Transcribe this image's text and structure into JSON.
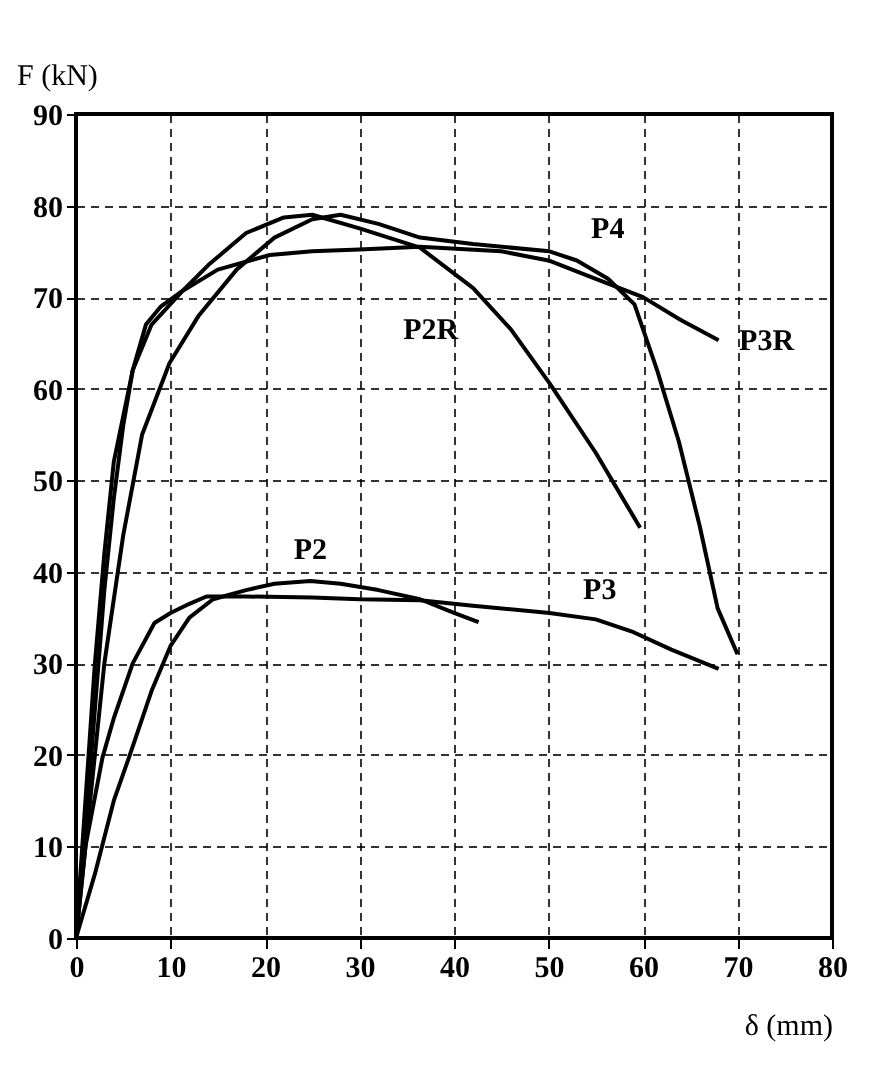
{
  "chart_data": {
    "type": "line",
    "xlabel": "δ (mm)",
    "ylabel": "F (kN)",
    "xlim": [
      0,
      80
    ],
    "xticks": [
      0,
      10,
      20,
      30,
      40,
      50,
      60,
      70,
      80
    ],
    "ylim": [
      0,
      90
    ],
    "yticks": [
      0,
      10,
      20,
      30,
      40,
      50,
      60,
      70,
      80,
      90
    ],
    "grid": true,
    "marker": "none",
    "line_style": "solid",
    "series": [
      {
        "color": "#000000",
        "x": [
          0,
          1,
          2,
          3,
          4,
          5,
          6,
          7.4,
          9,
          11.3,
          14,
          18,
          22,
          25,
          30,
          36.4,
          42,
          46,
          50.1,
          55,
          59.7
        ],
        "values": [
          0,
          12,
          25,
          38,
          48,
          56,
          62,
          67,
          69,
          70.7,
          73.5,
          77,
          78.7,
          79,
          77.5,
          75.4,
          71,
          66.5,
          60.6,
          53,
          44.8
        ]
      },
      {
        "color": "#000000",
        "x": [
          0,
          1,
          2,
          3,
          5,
          7,
          9.9,
          13,
          17,
          21,
          25,
          28,
          32,
          36.4,
          42,
          50.1,
          53,
          56.3,
          59.1,
          61.5,
          63.8,
          66,
          67.9,
          70
        ],
        "values": [
          0,
          10,
          20,
          30,
          44,
          55,
          62.8,
          68,
          73,
          76.5,
          78.5,
          79,
          78,
          76.5,
          75.8,
          75,
          74,
          72,
          69.2,
          62,
          54.2,
          45,
          36,
          31
        ]
      },
      {
        "color": "#000000",
        "x": [
          0,
          1,
          2,
          3,
          4,
          6,
          8,
          11.3,
          15,
          20.5,
          25,
          30,
          36.4,
          45,
          50,
          55,
          60,
          64,
          68
        ],
        "values": [
          0,
          15,
          30,
          42,
          52,
          62,
          67,
          70.7,
          73,
          74.6,
          75,
          75.2,
          75.5,
          75,
          74,
          72,
          70,
          67.5,
          65.3
        ]
      },
      {
        "color": "#000000",
        "x": [
          0,
          2,
          4,
          5.6,
          8,
          10,
          12,
          14.5,
          18,
          21,
          24.8,
          28,
          32,
          36.4,
          40,
          42.6
        ],
        "values": [
          0,
          7,
          15,
          19.7,
          27,
          31.9,
          35,
          37,
          38,
          38.7,
          39,
          38.7,
          38,
          37,
          35.5,
          34.5
        ]
      },
      {
        "color": "#000000",
        "x": [
          0,
          1,
          2.8,
          4,
          6,
          8.3,
          10,
          12,
          13.8,
          18,
          25,
          30,
          36.4,
          42,
          50.1,
          55,
          59,
          63,
          68
        ],
        "values": [
          0,
          10,
          19.7,
          24,
          30,
          34.4,
          35.5,
          36.5,
          37.3,
          37.3,
          37.2,
          37,
          36.9,
          36.3,
          35.5,
          34.8,
          33.4,
          31.5,
          29.4
        ]
      }
    ],
    "annotations": [
      {
        "text": "P4",
        "x": 55,
        "y": 74
      },
      {
        "text": "P2R",
        "x": 46,
        "y": 66.5
      },
      {
        "text": "P3R",
        "x": 68,
        "y": 65.3
      },
      {
        "text": "P2",
        "x": 24.8,
        "y": 39
      },
      {
        "text": "P3",
        "x": 55,
        "y": 34.8
      }
    ]
  }
}
